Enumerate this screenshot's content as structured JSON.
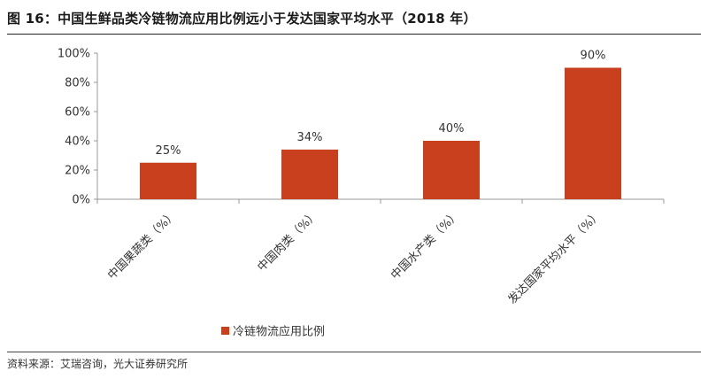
{
  "figure": {
    "title": "图 16：中国生鲜品类冷链物流应用比例远小于发达国家平均水平（2018 年）",
    "source": "资料来源：艾瑞咨询，光大证券研究所"
  },
  "chart_data": {
    "type": "bar",
    "title": "图 16：中国生鲜品类冷链物流应用比例远小于发达国家平均水平（2018 年）",
    "categories": [
      "中国果蔬类（%）",
      "中国肉类（%）",
      "中国水产类（%）",
      "发达国家平均水平（%）"
    ],
    "series": [
      {
        "name": "冷链物流应用比例",
        "values": [
          25,
          34,
          40,
          90
        ],
        "color": "#C9401F"
      }
    ],
    "data_labels": [
      "25%",
      "34%",
      "40%",
      "90%"
    ],
    "ylim": [
      0,
      100
    ],
    "yticks": [
      "0%",
      "20%",
      "40%",
      "60%",
      "80%",
      "100%"
    ],
    "xlabel": "",
    "ylabel": "",
    "grid": false,
    "legend": "bottom"
  }
}
